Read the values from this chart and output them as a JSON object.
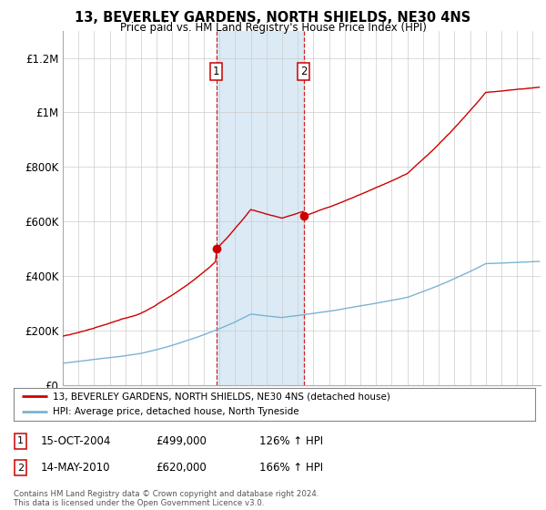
{
  "title": "13, BEVERLEY GARDENS, NORTH SHIELDS, NE30 4NS",
  "subtitle": "Price paid vs. HM Land Registry's House Price Index (HPI)",
  "sale1_date": "15-OCT-2004",
  "sale1_price": 499000,
  "sale1_hpi": "126% ↑ HPI",
  "sale1_label": "1",
  "sale2_date": "14-MAY-2010",
  "sale2_price": 620000,
  "sale2_hpi": "166% ↑ HPI",
  "sale2_label": "2",
  "legend_line1": "13, BEVERLEY GARDENS, NORTH SHIELDS, NE30 4NS (detached house)",
  "legend_line2": "HPI: Average price, detached house, North Tyneside",
  "footer": "Contains HM Land Registry data © Crown copyright and database right 2024.\nThis data is licensed under the Open Government Licence v3.0.",
  "hpi_color": "#7ab3d4",
  "price_color": "#cc0000",
  "shade_color": "#dbeaf5",
  "marker_box_color": "#cc0000",
  "ylim_min": 0,
  "ylim_max": 1300000,
  "yticks": [
    0,
    200000,
    400000,
    600000,
    800000,
    1000000,
    1200000
  ],
  "ytick_labels": [
    "£0",
    "£200K",
    "£400K",
    "£600K",
    "£800K",
    "£1M",
    "£1.2M"
  ],
  "x_start_year": 1995,
  "x_end_year": 2025,
  "background_color": "#ffffff",
  "grid_color": "#cccccc",
  "sale1_x": 2004.79,
  "sale2_x": 2010.37
}
